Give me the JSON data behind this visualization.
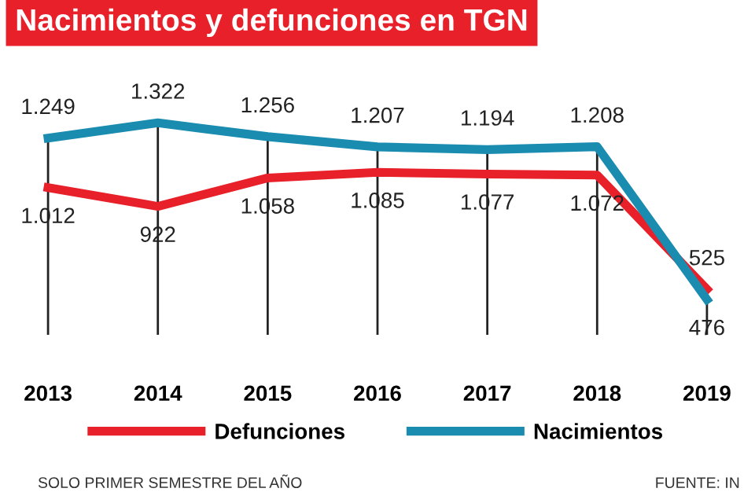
{
  "chart_data": {
    "type": "line",
    "title": "Nacimientos y defunciones en TGN",
    "categories": [
      "2013",
      "2014",
      "2015",
      "2016",
      "2017",
      "2018",
      "2019"
    ],
    "series": [
      {
        "name": "Defunciones",
        "color": "#e8202a",
        "values": [
          1012,
          922,
          1058,
          1085,
          1077,
          1072,
          525
        ],
        "value_labels": [
          "1.012",
          "922",
          "1.058",
          "1.085",
          "1.077",
          "1.072",
          "525"
        ]
      },
      {
        "name": "Nacimientos",
        "color": "#1a8cb0",
        "values": [
          1249,
          1322,
          1256,
          1207,
          1194,
          1208,
          476
        ],
        "value_labels": [
          "1.249",
          "1.322",
          "1.256",
          "1.207",
          "1.194",
          "1.208",
          "476"
        ]
      }
    ],
    "grid": "x",
    "legend": "bottom",
    "marker": "none",
    "line_style": "solid",
    "tick_labels": "x",
    "annotations": [
      "SOLO PRIMER SEMESTRE DEL AÑO",
      "FUENTE: IN"
    ]
  }
}
